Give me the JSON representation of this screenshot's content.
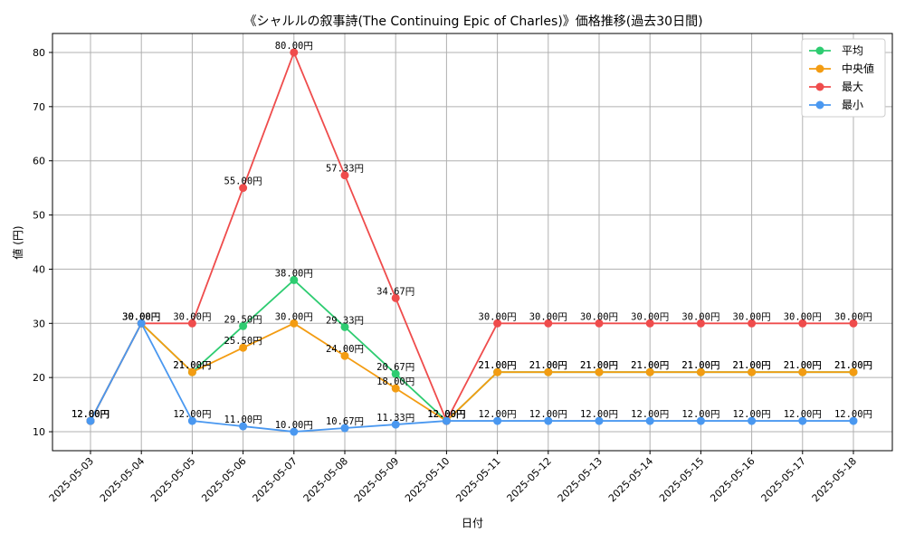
{
  "chart_data": {
    "type": "line",
    "title": "《シャルルの叙事詩(The Continuing Epic of Charles)》価格推移(過去30日間)",
    "xlabel": "日付",
    "ylabel": "値 (円)",
    "ylim": [
      6.5,
      83.5
    ],
    "yticks": [
      10,
      20,
      30,
      40,
      50,
      60,
      70,
      80
    ],
    "grid": true,
    "legend_position": "top-right",
    "value_suffix": "円",
    "x": [
      "2025-05-03",
      "2025-05-04",
      "2025-05-05",
      "2025-05-06",
      "2025-05-07",
      "2025-05-08",
      "2025-05-09",
      "2025-05-10",
      "2025-05-11",
      "2025-05-12",
      "2025-05-13",
      "2025-05-14",
      "2025-05-15",
      "2025-05-16",
      "2025-05-17",
      "2025-05-18"
    ],
    "series": [
      {
        "name": "平均",
        "color": "#2ecc71",
        "values": [
          12.0,
          30.0,
          21.0,
          29.5,
          38.0,
          29.33,
          20.67,
          12.0,
          21.0,
          21.0,
          21.0,
          21.0,
          21.0,
          21.0,
          21.0,
          21.0
        ]
      },
      {
        "name": "中央値",
        "color": "#f39c12",
        "values": [
          12.0,
          30.0,
          21.0,
          25.5,
          30.0,
          24.0,
          18.0,
          12.0,
          21.0,
          21.0,
          21.0,
          21.0,
          21.0,
          21.0,
          21.0,
          21.0
        ]
      },
      {
        "name": "最大",
        "color": "#ef4c4c",
        "values": [
          12.0,
          30.0,
          30.0,
          55.0,
          80.0,
          57.33,
          34.67,
          12.0,
          30.0,
          30.0,
          30.0,
          30.0,
          30.0,
          30.0,
          30.0,
          30.0
        ]
      },
      {
        "name": "最小",
        "color": "#4a98f0",
        "values": [
          12.0,
          30.0,
          12.0,
          11.0,
          10.0,
          10.67,
          11.33,
          12.0,
          12.0,
          12.0,
          12.0,
          12.0,
          12.0,
          12.0,
          12.0,
          12.0
        ]
      }
    ]
  }
}
